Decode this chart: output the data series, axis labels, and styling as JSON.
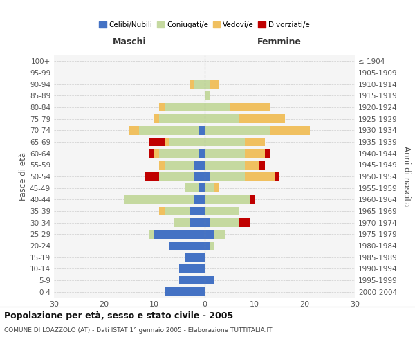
{
  "age_groups": [
    "0-4",
    "5-9",
    "10-14",
    "15-19",
    "20-24",
    "25-29",
    "30-34",
    "35-39",
    "40-44",
    "45-49",
    "50-54",
    "55-59",
    "60-64",
    "65-69",
    "70-74",
    "75-79",
    "80-84",
    "85-89",
    "90-94",
    "95-99",
    "100+"
  ],
  "birth_years": [
    "2000-2004",
    "1995-1999",
    "1990-1994",
    "1985-1989",
    "1980-1984",
    "1975-1979",
    "1970-1974",
    "1965-1969",
    "1960-1964",
    "1955-1959",
    "1950-1954",
    "1945-1949",
    "1940-1944",
    "1935-1939",
    "1930-1934",
    "1925-1929",
    "1920-1924",
    "1915-1919",
    "1910-1914",
    "1905-1909",
    "≤ 1904"
  ],
  "male_celibi": [
    8,
    5,
    5,
    4,
    7,
    10,
    3,
    3,
    2,
    1,
    2,
    2,
    1,
    0,
    1,
    0,
    0,
    0,
    0,
    0,
    0
  ],
  "male_coniugati": [
    0,
    0,
    0,
    0,
    0,
    1,
    3,
    5,
    14,
    3,
    7,
    6,
    8,
    7,
    12,
    9,
    8,
    0,
    2,
    0,
    0
  ],
  "male_vedovi": [
    0,
    0,
    0,
    0,
    0,
    0,
    0,
    1,
    0,
    0,
    0,
    1,
    1,
    1,
    2,
    1,
    1,
    0,
    1,
    0,
    0
  ],
  "male_divorziati": [
    0,
    0,
    0,
    0,
    0,
    0,
    0,
    0,
    0,
    0,
    3,
    0,
    1,
    3,
    0,
    0,
    0,
    0,
    0,
    0,
    0
  ],
  "female_celibi": [
    0,
    2,
    0,
    0,
    1,
    2,
    1,
    0,
    0,
    0,
    1,
    0,
    0,
    0,
    0,
    0,
    0,
    0,
    0,
    0,
    0
  ],
  "female_coniugati": [
    0,
    0,
    0,
    0,
    1,
    2,
    6,
    7,
    9,
    2,
    7,
    8,
    8,
    8,
    13,
    7,
    5,
    1,
    1,
    0,
    0
  ],
  "female_vedovi": [
    0,
    0,
    0,
    0,
    0,
    0,
    0,
    0,
    0,
    1,
    6,
    3,
    4,
    4,
    8,
    9,
    8,
    0,
    2,
    0,
    0
  ],
  "female_divorziati": [
    0,
    0,
    0,
    0,
    0,
    0,
    2,
    0,
    1,
    0,
    1,
    1,
    1,
    0,
    0,
    0,
    0,
    0,
    0,
    0,
    0
  ],
  "color_celibi": "#4472c4",
  "color_coniugati": "#c5d9a0",
  "color_vedovi": "#f0c060",
  "color_divorziati": "#c00000",
  "title": "Popolazione per età, sesso e stato civile - 2005",
  "subtitle": "COMUNE DI LOAZZOLO (AT) - Dati ISTAT 1° gennaio 2005 - Elaborazione TUTTITALIA.IT",
  "xlabel_left": "Maschi",
  "xlabel_right": "Femmine",
  "ylabel_left": "Fasce di età",
  "ylabel_right": "Anni di nascita",
  "xlim": 30,
  "bg_color": "#f5f5f5",
  "grid_color": "#cccccc"
}
